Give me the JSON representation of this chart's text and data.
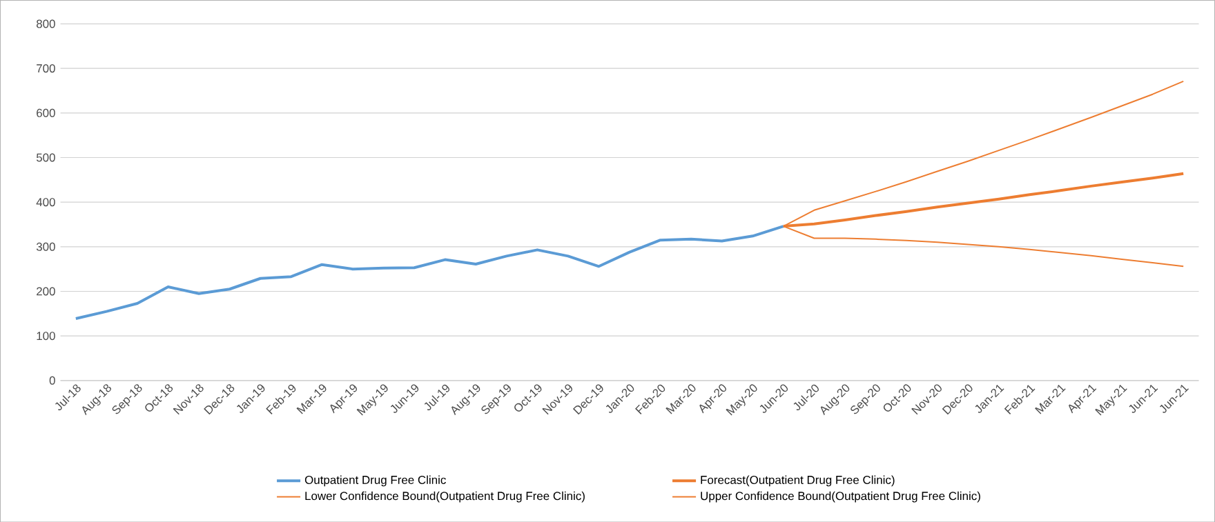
{
  "chart_data": {
    "type": "line",
    "categories": [
      "Jul-18",
      "Aug-18",
      "Sep-18",
      "Oct-18",
      "Nov-18",
      "Dec-18",
      "Jan-19",
      "Feb-19",
      "Mar-19",
      "Apr-19",
      "May-19",
      "Jun-19",
      "Jul-19",
      "Aug-19",
      "Sep-19",
      "Oct-19",
      "Nov-19",
      "Dec-19",
      "Jan-20",
      "Feb-20",
      "Mar-20",
      "Apr-20",
      "May-20",
      "Jun-20",
      "Jul-20",
      "Aug-20",
      "Sep-20",
      "Oct-20",
      "Nov-20",
      "Dec-20",
      "Jan-21",
      "Feb-21",
      "Mar-21",
      "Apr-21",
      "May-21",
      "Jun-21",
      "Jun-21"
    ],
    "series": [
      {
        "name": "Outpatient Drug Free Clinic",
        "color": "#5b9bd5",
        "values": [
          139,
          155,
          173,
          210,
          195,
          205,
          229,
          233,
          260,
          250,
          252,
          253,
          271,
          261,
          279,
          293,
          279,
          256,
          288,
          315,
          317,
          313,
          324,
          346,
          null,
          null,
          null,
          null,
          null,
          null,
          null,
          null,
          null,
          null,
          null,
          null,
          null
        ]
      },
      {
        "name": "Forecast(Outpatient Drug Free Clinic)",
        "color": "#ed7d31",
        "values": [
          null,
          null,
          null,
          null,
          null,
          null,
          null,
          null,
          null,
          null,
          null,
          null,
          null,
          null,
          null,
          null,
          null,
          null,
          null,
          null,
          null,
          null,
          null,
          346,
          351,
          360,
          370,
          379,
          389,
          398,
          407,
          417,
          426,
          436,
          445,
          454,
          464
        ]
      },
      {
        "name": "Lower Confidence Bound(Outpatient Drug Free Clinic)",
        "color": "#ed7d31",
        "values": [
          null,
          null,
          null,
          null,
          null,
          null,
          null,
          null,
          null,
          null,
          null,
          null,
          null,
          null,
          null,
          null,
          null,
          null,
          null,
          null,
          null,
          null,
          null,
          346,
          319,
          319,
          317,
          314,
          310,
          305,
          300,
          294,
          287,
          280,
          272,
          264,
          256
        ]
      },
      {
        "name": "Upper Confidence Bound(Outpatient Drug Free Clinic)",
        "color": "#ed7d31",
        "values": [
          null,
          null,
          null,
          null,
          null,
          null,
          null,
          null,
          null,
          null,
          null,
          null,
          null,
          null,
          null,
          null,
          null,
          null,
          null,
          null,
          null,
          null,
          null,
          346,
          382,
          403,
          424,
          446,
          469,
          492,
          516,
          540,
          565,
          590,
          616,
          642,
          671
        ]
      }
    ],
    "ylim": [
      0,
      800
    ],
    "yticks": [
      0,
      100,
      200,
      300,
      400,
      500,
      600,
      700,
      800
    ],
    "grid": "y",
    "legend": "bottom"
  }
}
